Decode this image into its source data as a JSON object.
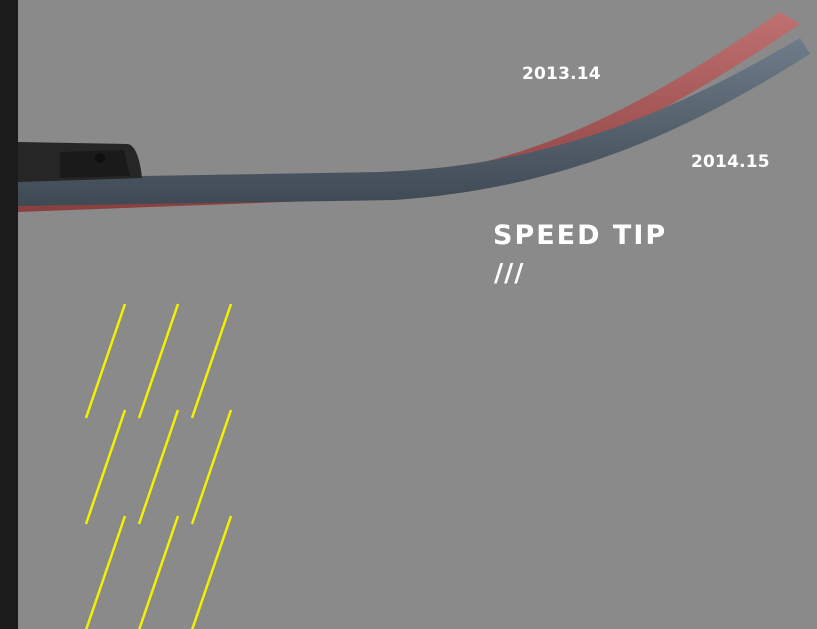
{
  "labels": {
    "year_old": "2013.14",
    "year_new": "2014.15",
    "title": "SPEED TIP",
    "slashes": "///"
  },
  "colors": {
    "background": "#8a8a8a",
    "left_bar": "#1b1b1b",
    "ski_red": "#b05a5a",
    "ski_blue": "#5c6a78",
    "binding": "#2a2a2a",
    "stripe_yellow": "#f2f200",
    "text": "#ffffff"
  }
}
